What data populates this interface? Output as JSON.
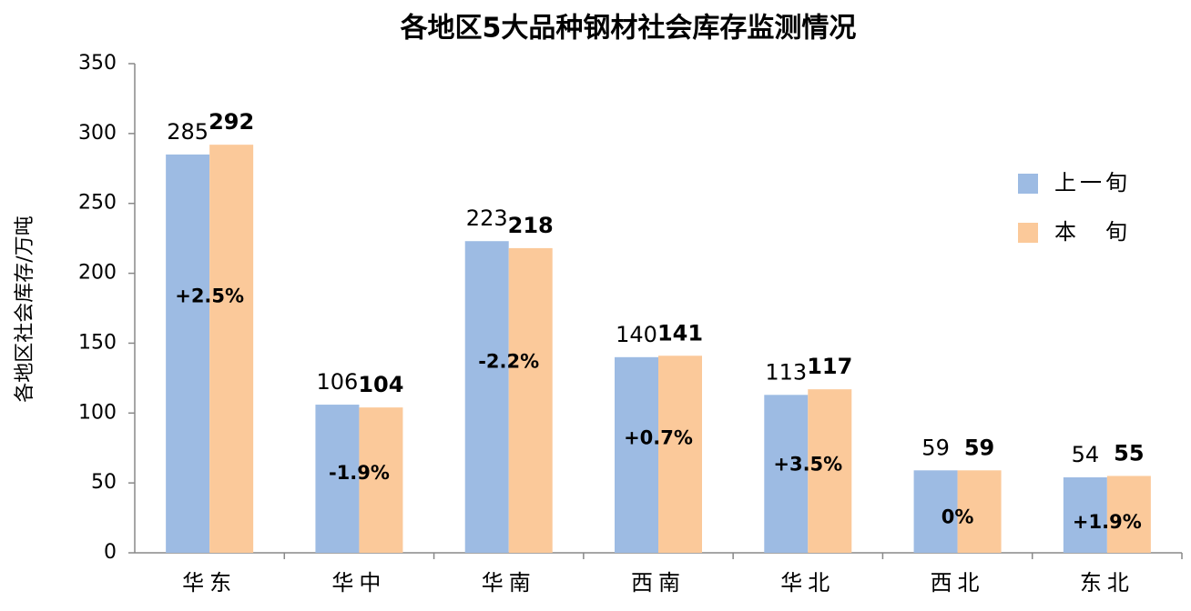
{
  "chart_data": {
    "type": "bar",
    "title": "各地区5大品种钢材社会库存监测情况",
    "y_label": "各地区社会库存/万吨",
    "categories": [
      "华东",
      "华中",
      "华南",
      "西南",
      "华北",
      "西北",
      "东北"
    ],
    "series": [
      {
        "name": "上一旬",
        "color": "#9dbbe3",
        "values": [
          285,
          106,
          223,
          140,
          113,
          59,
          54
        ]
      },
      {
        "name": "本　旬",
        "color": "#fbc99a",
        "values": [
          292,
          104,
          218,
          141,
          117,
          59,
          55
        ]
      }
    ],
    "annotations": [
      "+2.5%",
      "-1.9%",
      "-2.2%",
      "+0.7%",
      "+3.5%",
      "0%",
      "+1.9%"
    ],
    "ylim": [
      0,
      350
    ],
    "yticks": [
      0,
      50,
      100,
      150,
      200,
      250,
      300,
      350
    ],
    "grid": false,
    "legend": "right"
  }
}
